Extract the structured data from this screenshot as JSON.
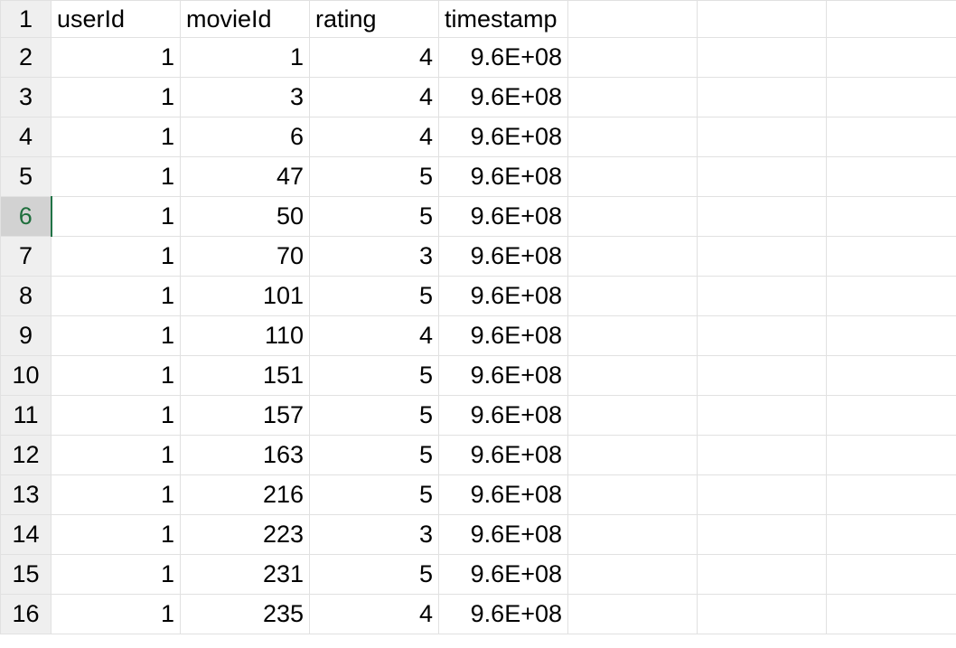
{
  "sheet": {
    "active_row": "6",
    "rows": [
      {
        "header": "1",
        "cells": [
          "userId",
          "movieId",
          "rating",
          "timestamp"
        ]
      },
      {
        "header": "2",
        "cells": [
          "1",
          "1",
          "4",
          "9.6E+08"
        ]
      },
      {
        "header": "3",
        "cells": [
          "1",
          "3",
          "4",
          "9.6E+08"
        ]
      },
      {
        "header": "4",
        "cells": [
          "1",
          "6",
          "4",
          "9.6E+08"
        ]
      },
      {
        "header": "5",
        "cells": [
          "1",
          "47",
          "5",
          "9.6E+08"
        ]
      },
      {
        "header": "6",
        "cells": [
          "1",
          "50",
          "5",
          "9.6E+08"
        ]
      },
      {
        "header": "7",
        "cells": [
          "1",
          "70",
          "3",
          "9.6E+08"
        ]
      },
      {
        "header": "8",
        "cells": [
          "1",
          "101",
          "5",
          "9.6E+08"
        ]
      },
      {
        "header": "9",
        "cells": [
          "1",
          "110",
          "4",
          "9.6E+08"
        ]
      },
      {
        "header": "10",
        "cells": [
          "1",
          "151",
          "5",
          "9.6E+08"
        ]
      },
      {
        "header": "11",
        "cells": [
          "1",
          "157",
          "5",
          "9.6E+08"
        ]
      },
      {
        "header": "12",
        "cells": [
          "1",
          "163",
          "5",
          "9.6E+08"
        ]
      },
      {
        "header": "13",
        "cells": [
          "1",
          "216",
          "5",
          "9.6E+08"
        ]
      },
      {
        "header": "14",
        "cells": [
          "1",
          "223",
          "3",
          "9.6E+08"
        ]
      },
      {
        "header": "15",
        "cells": [
          "1",
          "231",
          "5",
          "9.6E+08"
        ]
      },
      {
        "header": "16",
        "cells": [
          "1",
          "235",
          "4",
          "9.6E+08"
        ]
      }
    ]
  }
}
